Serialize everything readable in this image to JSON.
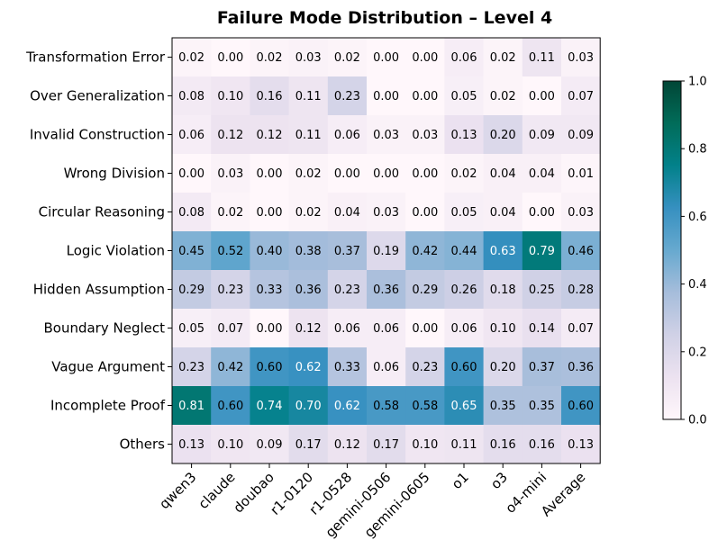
{
  "chart_data": {
    "type": "heatmap",
    "title": "Failure Mode Distribution – Level 4",
    "rows": [
      "Transformation Error",
      "Over Generalization",
      "Invalid Construction",
      "Wrong Division",
      "Circular Reasoning",
      "Logic Violation",
      "Hidden Assumption",
      "Boundary Neglect",
      "Vague Argument",
      "Incomplete Proof",
      "Others"
    ],
    "columns": [
      "qwen3",
      "claude",
      "doubao",
      "r1-0120",
      "r1-0528",
      "gemini-0506",
      "gemini-0605",
      "o1",
      "o3",
      "o4-mini",
      "Average"
    ],
    "values": [
      [
        0.02,
        0.0,
        0.02,
        0.03,
        0.02,
        0.0,
        0.0,
        0.06,
        0.02,
        0.11,
        0.03
      ],
      [
        0.08,
        0.1,
        0.16,
        0.11,
        0.23,
        0.0,
        0.0,
        0.05,
        0.02,
        0.0,
        0.07
      ],
      [
        0.06,
        0.12,
        0.12,
        0.11,
        0.06,
        0.03,
        0.03,
        0.13,
        0.2,
        0.09,
        0.09
      ],
      [
        0.0,
        0.03,
        0.0,
        0.02,
        0.0,
        0.0,
        0.0,
        0.02,
        0.04,
        0.04,
        0.01
      ],
      [
        0.08,
        0.02,
        0.0,
        0.02,
        0.04,
        0.03,
        0.0,
        0.05,
        0.04,
        0.0,
        0.03
      ],
      [
        0.45,
        0.52,
        0.4,
        0.38,
        0.37,
        0.19,
        0.42,
        0.44,
        0.63,
        0.79,
        0.46
      ],
      [
        0.29,
        0.23,
        0.33,
        0.36,
        0.23,
        0.36,
        0.29,
        0.26,
        0.18,
        0.25,
        0.28
      ],
      [
        0.05,
        0.07,
        0.0,
        0.12,
        0.06,
        0.06,
        0.0,
        0.06,
        0.1,
        0.14,
        0.07
      ],
      [
        0.23,
        0.42,
        0.6,
        0.62,
        0.33,
        0.06,
        0.23,
        0.6,
        0.2,
        0.37,
        0.36
      ],
      [
        0.81,
        0.6,
        0.74,
        0.7,
        0.62,
        0.58,
        0.58,
        0.65,
        0.35,
        0.35,
        0.6
      ],
      [
        0.13,
        0.1,
        0.09,
        0.17,
        0.12,
        0.17,
        0.1,
        0.11,
        0.16,
        0.16,
        0.13
      ]
    ],
    "value_format": "0.00",
    "colormap": "PuBuGn",
    "colormap_stops": [
      "#fff7fb",
      "#ece2f0",
      "#d0d1e6",
      "#a6bddb",
      "#67a9cf",
      "#3690c0",
      "#02818a",
      "#016c59",
      "#014636"
    ],
    "vmin": 0.0,
    "vmax": 1.0,
    "colorbar_ticks": [
      0.0,
      0.2,
      0.4,
      0.6,
      0.8,
      1.0
    ],
    "colorbar_tick_labels": [
      "0.0",
      "0.2",
      "0.4",
      "0.6",
      "0.8",
      "1.0"
    ],
    "colorbar_position": "right",
    "grid": false
  }
}
